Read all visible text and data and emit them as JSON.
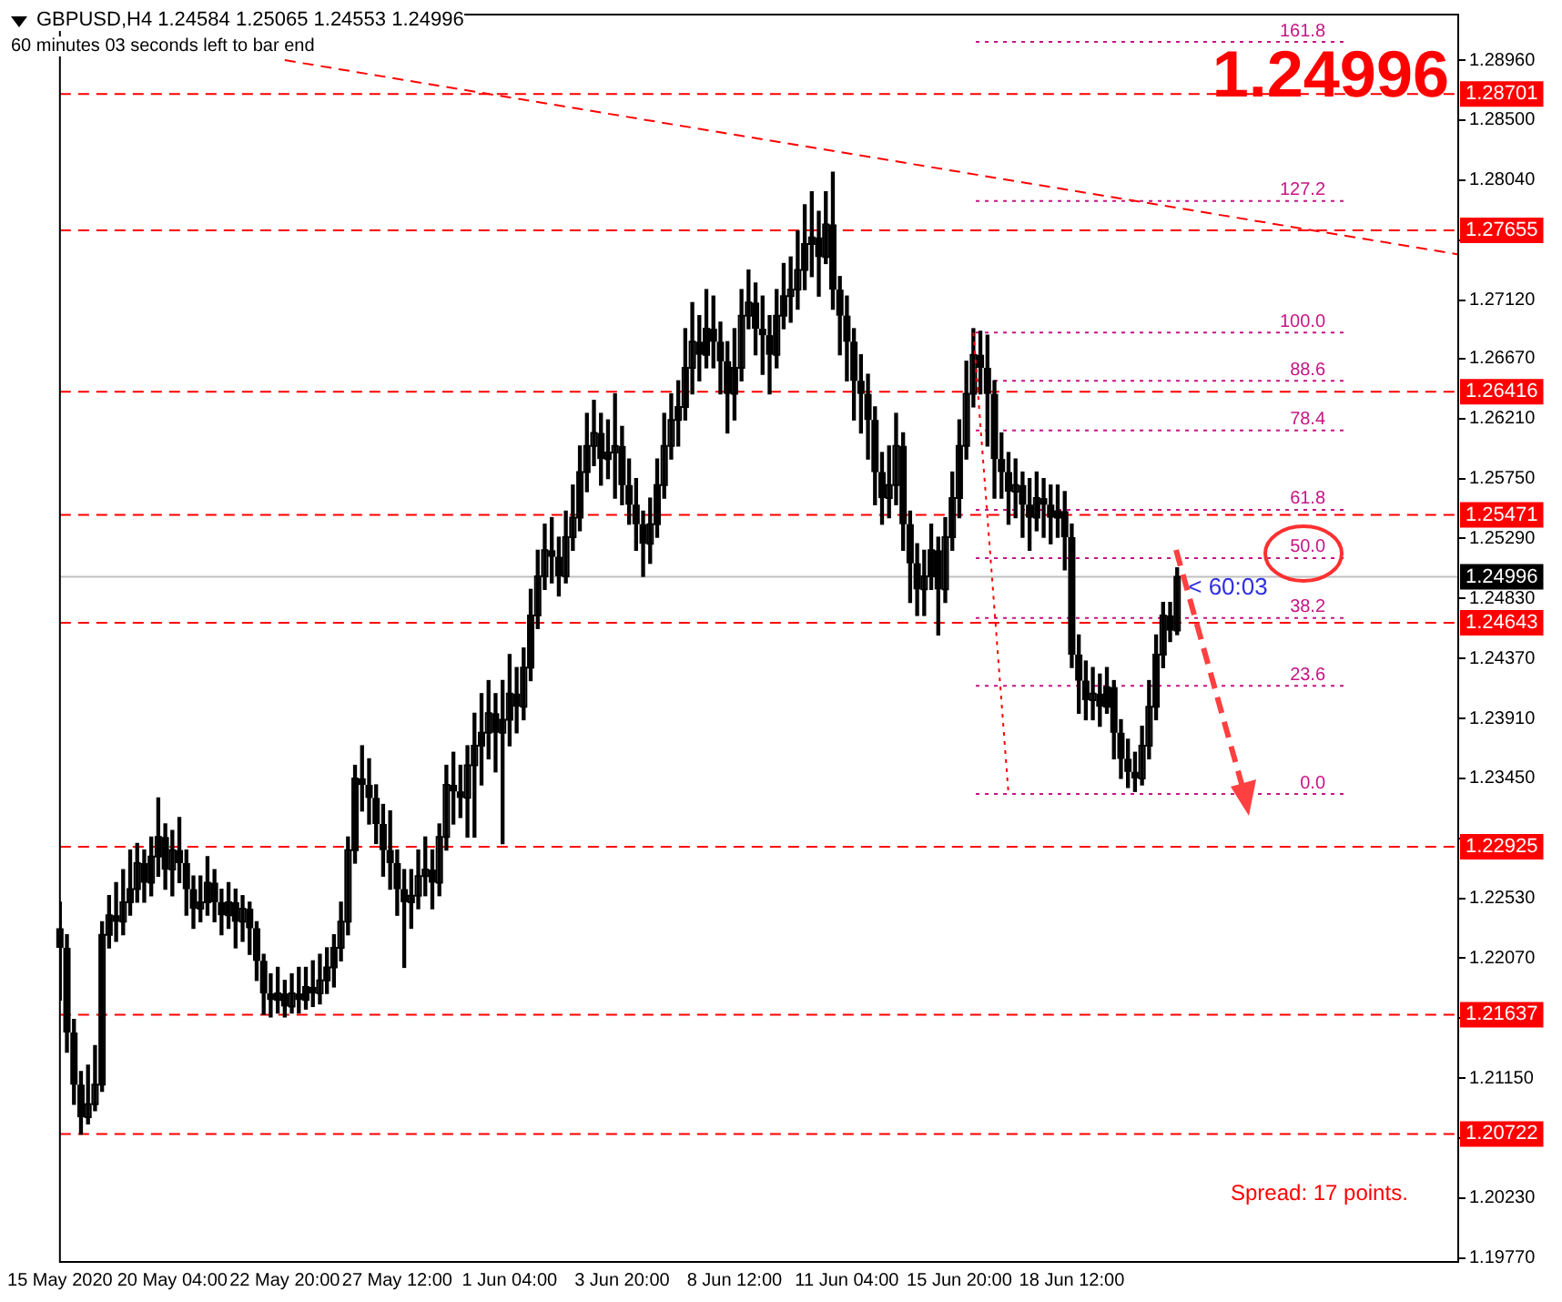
{
  "chart_data": {
    "type": "candlestick",
    "title": "GBPUSD,H4  1.24584 1.25065 1.24553 1.24996",
    "subtitle": "60 minutes 03 seconds left to bar end",
    "categories": [
      "15 May 2020",
      null,
      null,
      null,
      null,
      null,
      null,
      null,
      null,
      null,
      null,
      null,
      null,
      null,
      null,
      null,
      "20 May 04:00",
      null,
      null,
      null,
      null,
      null,
      null,
      null,
      null,
      null,
      null,
      null,
      null,
      null,
      null,
      null,
      "22 May 20:00",
      null,
      null,
      null,
      null,
      null,
      null,
      null,
      null,
      null,
      null,
      null,
      null,
      null,
      null,
      null,
      "27 May 12:00",
      null,
      null,
      null,
      null,
      null,
      null,
      null,
      null,
      null,
      null,
      null,
      null,
      null,
      null,
      null,
      "1 Jun 04:00",
      null,
      null,
      null,
      null,
      null,
      null,
      null,
      null,
      null,
      null,
      null,
      null,
      null,
      null,
      null,
      "3 Jun 20:00",
      null,
      null,
      null,
      null,
      null,
      null,
      null,
      null,
      null,
      null,
      null,
      null,
      null,
      null,
      null,
      "8 Jun 12:00",
      null,
      null,
      null,
      null,
      null,
      null,
      null,
      null,
      null,
      null,
      null,
      null,
      null,
      null,
      null,
      "11 Jun 04:00",
      null,
      null,
      null,
      null,
      null,
      null,
      null,
      null,
      null,
      null,
      null,
      null,
      null,
      null,
      null,
      "15 Jun 20:00",
      null,
      null,
      null,
      null,
      null,
      null,
      null,
      null,
      null,
      null,
      null,
      null,
      null,
      null,
      null,
      "18 Jun 12:00",
      null,
      null,
      null,
      null,
      null,
      null,
      null,
      null,
      null,
      null,
      null,
      null,
      null,
      null,
      null,
      null,
      null,
      null,
      null,
      null,
      null,
      null,
      null,
      null,
      null,
      null,
      null,
      null,
      null,
      null,
      null,
      null,
      null,
      null,
      null,
      null,
      null,
      null,
      null,
      null,
      null,
      null,
      null,
      null,
      null,
      null,
      null,
      null,
      null,
      null,
      null,
      null,
      null,
      null,
      null
    ],
    "ohlc": [
      [
        1.223,
        1.225,
        1.2175,
        1.2215
      ],
      [
        1.2215,
        1.2225,
        1.2135,
        1.215
      ],
      [
        1.215,
        1.216,
        1.2095,
        1.211
      ],
      [
        1.211,
        1.212,
        1.2072,
        1.2085
      ],
      [
        1.2085,
        1.2125,
        1.208,
        1.2095
      ],
      [
        1.2095,
        1.214,
        1.209,
        1.211
      ],
      [
        1.211,
        1.2235,
        1.2105,
        1.2225
      ],
      [
        1.2225,
        1.2255,
        1.2215,
        1.224
      ],
      [
        1.224,
        1.2265,
        1.222,
        1.2235
      ],
      [
        1.2235,
        1.2275,
        1.2225,
        1.225
      ],
      [
        1.225,
        1.229,
        1.224,
        1.226
      ],
      [
        1.226,
        1.2295,
        1.225,
        1.228
      ],
      [
        1.228,
        1.229,
        1.225,
        1.2265
      ],
      [
        1.2265,
        1.23,
        1.2255,
        1.2285
      ],
      [
        1.2285,
        1.233,
        1.227,
        1.23
      ],
      [
        1.23,
        1.231,
        1.226,
        1.2275
      ],
      [
        1.2275,
        1.2305,
        1.2255,
        1.229
      ],
      [
        1.229,
        1.2315,
        1.2265,
        1.228
      ],
      [
        1.228,
        1.229,
        1.224,
        1.226
      ],
      [
        1.226,
        1.227,
        1.223,
        1.2245
      ],
      [
        1.2245,
        1.227,
        1.2235,
        1.225
      ],
      [
        1.225,
        1.2285,
        1.224,
        1.2265
      ],
      [
        1.2265,
        1.2275,
        1.2235,
        1.225
      ],
      [
        1.225,
        1.226,
        1.2225,
        1.224
      ],
      [
        1.224,
        1.2265,
        1.223,
        1.225
      ],
      [
        1.225,
        1.226,
        1.2215,
        1.2235
      ],
      [
        1.2235,
        1.2255,
        1.222,
        1.2245
      ],
      [
        1.2245,
        1.225,
        1.221,
        1.223
      ],
      [
        1.223,
        1.2235,
        1.219,
        1.2205
      ],
      [
        1.2205,
        1.221,
        1.2164,
        1.218
      ],
      [
        1.218,
        1.2195,
        1.2162,
        1.2175
      ],
      [
        1.2175,
        1.22,
        1.2165,
        1.218
      ],
      [
        1.218,
        1.219,
        1.2162,
        1.217
      ],
      [
        1.217,
        1.2195,
        1.2165,
        1.218
      ],
      [
        1.218,
        1.22,
        1.2165,
        1.2175
      ],
      [
        1.2175,
        1.22,
        1.2168,
        1.2185
      ],
      [
        1.2185,
        1.2205,
        1.217,
        1.218
      ],
      [
        1.218,
        1.221,
        1.2172,
        1.219
      ],
      [
        1.219,
        1.2215,
        1.218,
        1.22
      ],
      [
        1.22,
        1.2225,
        1.2185,
        1.2215
      ],
      [
        1.2215,
        1.225,
        1.2205,
        1.2235
      ],
      [
        1.2235,
        1.23,
        1.2225,
        1.229
      ],
      [
        1.229,
        1.2355,
        1.228,
        1.2345
      ],
      [
        1.2345,
        1.237,
        1.232,
        1.234
      ],
      [
        1.234,
        1.236,
        1.231,
        1.233
      ],
      [
        1.233,
        1.234,
        1.2295,
        1.231
      ],
      [
        1.231,
        1.2325,
        1.227,
        1.229
      ],
      [
        1.229,
        1.232,
        1.226,
        1.228
      ],
      [
        1.228,
        1.229,
        1.224,
        1.226
      ],
      [
        1.226,
        1.2275,
        1.22,
        1.225
      ],
      [
        1.225,
        1.2275,
        1.223,
        1.2255
      ],
      [
        1.2255,
        1.229,
        1.2245,
        1.227
      ],
      [
        1.227,
        1.23,
        1.2255,
        1.2275
      ],
      [
        1.2275,
        1.229,
        1.2245,
        1.2265
      ],
      [
        1.2265,
        1.231,
        1.2255,
        1.23
      ],
      [
        1.23,
        1.2355,
        1.229,
        1.234
      ],
      [
        1.234,
        1.2365,
        1.231,
        1.2335
      ],
      [
        1.2335,
        1.2355,
        1.2315,
        1.233
      ],
      [
        1.233,
        1.237,
        1.23,
        1.2355
      ],
      [
        1.2355,
        1.2395,
        1.23,
        1.237
      ],
      [
        1.237,
        1.241,
        1.234,
        1.238
      ],
      [
        1.238,
        1.242,
        1.236,
        1.2395
      ],
      [
        1.2395,
        1.241,
        1.235,
        1.238
      ],
      [
        1.238,
        1.242,
        1.2295,
        1.239
      ],
      [
        1.239,
        1.244,
        1.237,
        1.241
      ],
      [
        1.241,
        1.243,
        1.238,
        1.24
      ],
      [
        1.24,
        1.2445,
        1.239,
        1.243
      ],
      [
        1.243,
        1.249,
        1.242,
        1.247
      ],
      [
        1.247,
        1.252,
        1.246,
        1.25
      ],
      [
        1.25,
        1.254,
        1.249,
        1.252
      ],
      [
        1.252,
        1.2545,
        1.2495,
        1.2515
      ],
      [
        1.2515,
        1.253,
        1.2485,
        1.25
      ],
      [
        1.25,
        1.255,
        1.2495,
        1.253
      ],
      [
        1.253,
        1.257,
        1.252,
        1.2545
      ],
      [
        1.2545,
        1.26,
        1.2535,
        1.258
      ],
      [
        1.258,
        1.2625,
        1.2565,
        1.26
      ],
      [
        1.26,
        1.2635,
        1.2585,
        1.261
      ],
      [
        1.261,
        1.2625,
        1.257,
        1.259
      ],
      [
        1.259,
        1.262,
        1.2575,
        1.2595
      ],
      [
        1.2595,
        1.264,
        1.256,
        1.26
      ],
      [
        1.26,
        1.2615,
        1.2555,
        1.257
      ],
      [
        1.257,
        1.259,
        1.254,
        1.2555
      ],
      [
        1.2555,
        1.2575,
        1.252,
        1.254
      ],
      [
        1.254,
        1.255,
        1.25,
        1.2525
      ],
      [
        1.2525,
        1.256,
        1.251,
        1.254
      ],
      [
        1.254,
        1.259,
        1.253,
        1.257
      ],
      [
        1.257,
        1.2625,
        1.256,
        1.26
      ],
      [
        1.26,
        1.264,
        1.259,
        1.262
      ],
      [
        1.262,
        1.265,
        1.26,
        1.263
      ],
      [
        1.263,
        1.269,
        1.262,
        1.266
      ],
      [
        1.266,
        1.271,
        1.264,
        1.268
      ],
      [
        1.268,
        1.27,
        1.265,
        1.267
      ],
      [
        1.267,
        1.272,
        1.266,
        1.269
      ],
      [
        1.269,
        1.2715,
        1.266,
        1.268
      ],
      [
        1.268,
        1.2695,
        1.264,
        1.2665
      ],
      [
        1.2665,
        1.268,
        1.261,
        1.264
      ],
      [
        1.264,
        1.269,
        1.262,
        1.266
      ],
      [
        1.266,
        1.272,
        1.265,
        1.27
      ],
      [
        1.27,
        1.2735,
        1.269,
        1.271
      ],
      [
        1.271,
        1.2725,
        1.267,
        1.269
      ],
      [
        1.269,
        1.2715,
        1.2655,
        1.2685
      ],
      [
        1.2685,
        1.27,
        1.264,
        1.267
      ],
      [
        1.267,
        1.272,
        1.266,
        1.27
      ],
      [
        1.27,
        1.274,
        1.269,
        1.2715
      ],
      [
        1.2715,
        1.2745,
        1.2695,
        1.272
      ],
      [
        1.272,
        1.2765,
        1.2705,
        1.2735
      ],
      [
        1.2735,
        1.2785,
        1.272,
        1.2755
      ],
      [
        1.2755,
        1.2795,
        1.273,
        1.276
      ],
      [
        1.276,
        1.278,
        1.2715,
        1.2745
      ],
      [
        1.2745,
        1.2795,
        1.274,
        1.277
      ],
      [
        1.277,
        1.281,
        1.2705,
        1.272
      ],
      [
        1.272,
        1.273,
        1.267,
        1.27
      ],
      [
        1.27,
        1.2715,
        1.265,
        1.268
      ],
      [
        1.268,
        1.269,
        1.262,
        1.265
      ],
      [
        1.265,
        1.267,
        1.261,
        1.264
      ],
      [
        1.264,
        1.2655,
        1.259,
        1.262
      ],
      [
        1.262,
        1.263,
        1.2555,
        1.258
      ],
      [
        1.258,
        1.2595,
        1.254,
        1.256
      ],
      [
        1.256,
        1.26,
        1.2545,
        1.257
      ],
      [
        1.257,
        1.2625,
        1.2555,
        1.26
      ],
      [
        1.26,
        1.261,
        1.252,
        1.254
      ],
      [
        1.254,
        1.255,
        1.248,
        1.251
      ],
      [
        1.251,
        1.2525,
        1.247,
        1.249
      ],
      [
        1.249,
        1.252,
        1.247,
        1.25
      ],
      [
        1.25,
        1.254,
        1.249,
        1.252
      ],
      [
        1.252,
        1.253,
        1.2455,
        1.249
      ],
      [
        1.249,
        1.2545,
        1.248,
        1.253
      ],
      [
        1.253,
        1.258,
        1.252,
        1.256
      ],
      [
        1.256,
        1.262,
        1.2545,
        1.26
      ],
      [
        1.26,
        1.2665,
        1.259,
        1.264
      ],
      [
        1.264,
        1.269,
        1.263,
        1.267
      ],
      [
        1.267,
        1.2688,
        1.264,
        1.266
      ],
      [
        1.266,
        1.2685,
        1.26,
        1.264
      ],
      [
        1.264,
        1.265,
        1.256,
        1.259
      ],
      [
        1.259,
        1.261,
        1.256,
        1.258
      ],
      [
        1.258,
        1.2595,
        1.254,
        1.2565
      ],
      [
        1.2565,
        1.259,
        1.2545,
        1.257
      ],
      [
        1.257,
        1.258,
        1.253,
        1.2555
      ],
      [
        1.2555,
        1.2575,
        1.252,
        1.2545
      ],
      [
        1.2545,
        1.258,
        1.2535,
        1.256
      ],
      [
        1.256,
        1.2575,
        1.253,
        1.2555
      ],
      [
        1.2555,
        1.257,
        1.2525,
        1.2545
      ],
      [
        1.2545,
        1.257,
        1.253,
        1.255
      ],
      [
        1.255,
        1.2565,
        1.2505,
        1.253
      ],
      [
        1.253,
        1.254,
        1.243,
        1.244
      ],
      [
        1.244,
        1.2455,
        1.2395,
        1.242
      ],
      [
        1.242,
        1.2435,
        1.239,
        1.2405
      ],
      [
        1.2405,
        1.243,
        1.239,
        1.241
      ],
      [
        1.241,
        1.2425,
        1.2385,
        1.24
      ],
      [
        1.24,
        1.243,
        1.2395,
        1.2415
      ],
      [
        1.2415,
        1.242,
        1.236,
        1.238
      ],
      [
        1.238,
        1.239,
        1.2345,
        1.236
      ],
      [
        1.236,
        1.2375,
        1.2338,
        1.235
      ],
      [
        1.235,
        1.2365,
        1.2335,
        1.2345
      ],
      [
        1.2345,
        1.2385,
        1.234,
        1.237
      ],
      [
        1.237,
        1.242,
        1.236,
        1.24
      ],
      [
        1.24,
        1.2455,
        1.239,
        1.244
      ],
      [
        1.244,
        1.248,
        1.243,
        1.247
      ],
      [
        1.247,
        1.248,
        1.245,
        1.24584
      ],
      [
        1.24584,
        1.25065,
        1.24553,
        1.24996
      ],
      null,
      null,
      null,
      null,
      null,
      null,
      null,
      null,
      null,
      null,
      null,
      null,
      null,
      null,
      null,
      null,
      null,
      null,
      null,
      null,
      null,
      null,
      null,
      null,
      null,
      null,
      null,
      null,
      null,
      null,
      null,
      null,
      null,
      null,
      null,
      null,
      null,
      null,
      null,
      null
    ],
    "color": "#000000",
    "series": [
      {
        "type": "line",
        "color": "#ff0000",
        "line_style": "dashed",
        "values": [
          null,
          null,
          null,
          null,
          null,
          null,
          null,
          null,
          null,
          null,
          null,
          null,
          null,
          null,
          null,
          null,
          null,
          null,
          null,
          null,
          null,
          null,
          null,
          null,
          null,
          null,
          null,
          null,
          null,
          null,
          null,
          null,
          1.2896,
          null,
          null,
          null,
          null,
          null,
          null,
          null,
          null,
          null,
          null,
          null,
          null,
          null,
          null,
          null,
          null,
          null,
          null,
          null,
          null,
          null,
          null,
          null,
          null,
          null,
          null,
          null,
          null,
          null,
          null,
          null,
          null,
          null,
          null,
          null,
          null,
          null,
          null,
          null,
          null,
          null,
          null,
          null,
          null,
          null,
          null,
          null,
          null,
          null,
          null,
          null,
          null,
          null,
          null,
          null,
          null,
          null,
          null,
          null,
          null,
          null,
          null,
          null,
          null,
          null,
          null,
          null,
          null,
          null,
          null,
          null,
          null,
          null,
          null,
          null,
          null,
          null,
          null,
          null,
          null,
          null,
          null,
          null,
          null,
          null,
          null,
          null,
          null,
          null,
          null,
          null,
          null,
          null,
          null,
          null,
          null,
          null,
          null,
          null,
          null,
          null,
          null,
          null,
          null,
          null,
          null,
          null,
          null,
          null,
          null,
          null,
          null,
          null,
          null,
          null,
          null,
          null,
          null,
          null,
          null,
          null,
          null,
          null,
          null,
          null,
          null,
          null,
          null,
          null,
          null,
          null,
          null,
          null,
          null,
          null,
          null,
          null,
          null,
          null,
          null,
          null,
          null,
          null,
          null,
          null,
          null,
          null,
          null,
          null,
          null,
          null,
          null,
          null,
          null,
          null,
          null,
          null,
          null,
          null,
          null,
          null,
          null,
          null,
          null,
          null,
          null,
          1.2747
        ]
      },
      {
        "type": "line",
        "color": "#ff0000",
        "line_style": "dotted",
        "values": [
          null,
          null,
          null,
          null,
          null,
          null,
          null,
          null,
          null,
          null,
          null,
          null,
          null,
          null,
          null,
          null,
          null,
          null,
          null,
          null,
          null,
          null,
          null,
          null,
          null,
          null,
          null,
          null,
          null,
          null,
          null,
          null,
          null,
          null,
          null,
          null,
          null,
          null,
          null,
          null,
          null,
          null,
          null,
          null,
          null,
          null,
          null,
          null,
          null,
          null,
          null,
          null,
          null,
          null,
          null,
          null,
          null,
          null,
          null,
          null,
          null,
          null,
          null,
          null,
          null,
          null,
          null,
          null,
          null,
          null,
          null,
          null,
          null,
          null,
          null,
          null,
          null,
          null,
          null,
          null,
          null,
          null,
          null,
          null,
          null,
          null,
          null,
          null,
          null,
          null,
          null,
          null,
          null,
          null,
          null,
          null,
          null,
          null,
          null,
          null,
          null,
          null,
          null,
          null,
          null,
          null,
          null,
          null,
          null,
          null,
          null,
          null,
          null,
          null,
          null,
          null,
          null,
          null,
          null,
          null,
          null,
          null,
          null,
          null,
          null,
          null,
          null,
          null,
          null,
          null,
          1.2687,
          null,
          null,
          null,
          null,
          1.2333,
          null,
          null,
          null,
          null,
          null,
          null,
          null,
          null,
          null,
          null,
          null,
          null,
          null,
          null,
          null,
          null,
          null,
          null,
          null,
          null,
          null,
          null,
          null,
          null,
          null,
          null,
          null,
          null,
          null,
          null,
          null,
          null,
          null,
          null,
          null,
          null,
          null,
          null,
          null,
          null,
          null,
          null,
          null,
          null,
          null,
          null,
          null,
          null,
          null,
          null,
          null,
          null,
          null,
          null,
          null,
          null,
          null,
          null,
          null,
          null,
          null,
          null,
          null,
          null
        ]
      }
    ],
    "ylim": [
      1.1974,
      1.2931
    ],
    "yticks": [
      {
        "value": 1.2896,
        "label": "1.28960"
      },
      {
        "value": 1.285,
        "label": "1.28500"
      },
      {
        "value": 1.2804,
        "label": "1.28040"
      },
      {
        "value": 1.2758,
        "label": null
      },
      {
        "value": 1.2712,
        "label": "1.27120"
      },
      {
        "value": 1.2667,
        "label": "1.26670"
      },
      {
        "value": 1.2621,
        "label": "1.26210"
      },
      {
        "value": 1.2575,
        "label": "1.25750"
      },
      {
        "value": 1.2529,
        "label": "1.25290"
      },
      {
        "value": 1.2483,
        "label": "1.24830"
      },
      {
        "value": 1.2437,
        "label": "1.24370"
      },
      {
        "value": 1.2391,
        "label": "1.23910"
      },
      {
        "value": 1.2345,
        "label": "1.23450"
      },
      {
        "value": 1.2299,
        "label": null
      },
      {
        "value": 1.2253,
        "label": "1.22530"
      },
      {
        "value": 1.2207,
        "label": "1.22070"
      },
      {
        "value": 1.2161,
        "label": null
      },
      {
        "value": 1.2115,
        "label": "1.21150"
      },
      {
        "value": 1.2069,
        "label": null
      },
      {
        "value": 1.2023,
        "label": "1.20230"
      },
      {
        "value": 1.1977,
        "label": "1.19770"
      }
    ],
    "ref_lines": [
      {
        "axis": "y",
        "value": 1.28701,
        "label": "1.28701",
        "color": "#ff0000",
        "line_style": "dashed"
      },
      {
        "axis": "y",
        "value": 1.27655,
        "label": "1.27655",
        "color": "#ff0000",
        "line_style": "dashed"
      },
      {
        "axis": "y",
        "value": 1.26416,
        "label": "1.26416",
        "color": "#ff0000",
        "line_style": "dashed"
      },
      {
        "axis": "y",
        "value": 1.25471,
        "label": "1.25471",
        "color": "#ff0000",
        "line_style": "dashed"
      },
      {
        "axis": "y",
        "value": 1.24643,
        "label": "1.24643",
        "color": "#ff0000",
        "line_style": "dashed"
      },
      {
        "axis": "y",
        "value": 1.22925,
        "label": "1.22925",
        "color": "#ff0000",
        "line_style": "dashed"
      },
      {
        "axis": "y",
        "value": 1.21637,
        "label": "1.21637",
        "color": "#ff0000",
        "line_style": "dashed"
      },
      {
        "axis": "y",
        "value": 1.20722,
        "label": "1.20722",
        "color": "#ff0000",
        "line_style": "dashed"
      },
      {
        "axis": "y",
        "value": 1.24996,
        "label": "1.24996",
        "color": "#c0c0c0",
        "line_style": "solid"
      },
      {
        "axis": "y",
        "value": 1.291,
        "color": "#c71585",
        "line_style": "dotted"
      },
      {
        "axis": "y",
        "value": 1.2788,
        "color": "#c71585",
        "line_style": "dotted"
      },
      {
        "axis": "y",
        "value": 1.2687,
        "color": "#c71585",
        "line_style": "dotted"
      },
      {
        "axis": "y",
        "value": 1.265,
        "color": "#c71585",
        "line_style": "dotted"
      },
      {
        "axis": "y",
        "value": 1.2612,
        "color": "#c71585",
        "line_style": "dotted"
      },
      {
        "axis": "y",
        "value": 1.2551,
        "color": "#c71585",
        "line_style": "dotted"
      },
      {
        "axis": "y",
        "value": 1.2514,
        "color": "#c71585",
        "line_style": "dotted"
      },
      {
        "axis": "y",
        "value": 1.2468,
        "color": "#c71585",
        "line_style": "dotted"
      },
      {
        "axis": "y",
        "value": 1.2416,
        "color": "#c71585",
        "line_style": "dotted"
      },
      {
        "axis": "y",
        "value": 1.2333,
        "color": "#c71585",
        "line_style": "dotted"
      }
    ],
    "annotations": [
      "1.24996",
      "Spread: 17 points.",
      {
        "text": "< 60:03",
        "y": 1.24996
      },
      {
        "text": "161.8",
        "y": 1.291
      },
      {
        "text": "127.2",
        "y": 1.2788
      },
      {
        "text": "100.0",
        "y": 1.2687
      },
      {
        "text": "88.6",
        "y": 1.265
      },
      {
        "text": "78.4",
        "y": 1.2612
      },
      {
        "text": "61.8",
        "y": 1.2551
      },
      {
        "text": "50.0",
        "y": 1.2514
      },
      {
        "text": "38.2",
        "y": 1.2468
      },
      {
        "text": "23.6",
        "y": 1.2416
      },
      {
        "text": "0.0",
        "y": 1.2333
      }
    ],
    "grid": false,
    "legend": false,
    "marker": "none"
  }
}
